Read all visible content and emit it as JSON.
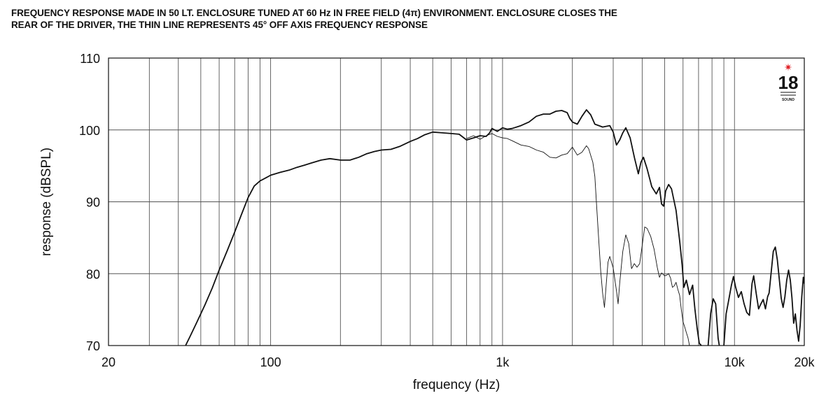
{
  "caption": {
    "line1": "FREQUENCY RESPONSE MADE IN 50 LT. ENCLOSURE TUNED AT 60 Hz IN FREE FIELD (4π) ENVIRONMENT. ENCLOSURE CLOSES THE",
    "line2": "REAR OF THE DRIVER, THE THIN LINE REPRESENTS 45° OFF AXIS FREQUENCY RESPONSE"
  },
  "logo": {
    "number": "18",
    "word": "SOUND",
    "accent": "#e0242a"
  },
  "chart_data": {
    "type": "line",
    "xlabel": "frequency (Hz)",
    "ylabel": "response (dBSPL)",
    "xscale": "log",
    "xlim": [
      20,
      20000
    ],
    "ylim": [
      70,
      110
    ],
    "grid": true,
    "xticks": [
      {
        "v": 20,
        "label": "20"
      },
      {
        "v": 100,
        "label": "100"
      },
      {
        "v": 1000,
        "label": "1k"
      },
      {
        "v": 10000,
        "label": "10k"
      },
      {
        "v": 20000,
        "label": "20k"
      }
    ],
    "yticks": [
      {
        "v": 70,
        "label": "70"
      },
      {
        "v": 80,
        "label": "80"
      },
      {
        "v": 90,
        "label": "90"
      },
      {
        "v": 100,
        "label": "100"
      },
      {
        "v": 110,
        "label": "110"
      }
    ],
    "series": [
      {
        "style": "thick",
        "points": [
          [
            43,
            70
          ],
          [
            45,
            71.3
          ],
          [
            48,
            73.2
          ],
          [
            52,
            75.6
          ],
          [
            56,
            78
          ],
          [
            60,
            80.5
          ],
          [
            65,
            83.2
          ],
          [
            70,
            85.8
          ],
          [
            75,
            88.3
          ],
          [
            80,
            90.6
          ],
          [
            85,
            92.2
          ],
          [
            90,
            92.9
          ],
          [
            95,
            93.3
          ],
          [
            100,
            93.7
          ],
          [
            110,
            94.1
          ],
          [
            120,
            94.4
          ],
          [
            130,
            94.8
          ],
          [
            140,
            95.1
          ],
          [
            150,
            95.4
          ],
          [
            165,
            95.8
          ],
          [
            180,
            96
          ],
          [
            200,
            95.8
          ],
          [
            220,
            95.8
          ],
          [
            240,
            96.2
          ],
          [
            260,
            96.7
          ],
          [
            280,
            97
          ],
          [
            300,
            97.2
          ],
          [
            330,
            97.3
          ],
          [
            360,
            97.7
          ],
          [
            400,
            98.4
          ],
          [
            430,
            98.8
          ],
          [
            460,
            99.3
          ],
          [
            500,
            99.7
          ],
          [
            550,
            99.6
          ],
          [
            600,
            99.5
          ],
          [
            650,
            99.4
          ],
          [
            700,
            98.6
          ],
          [
            750,
            98.9
          ],
          [
            800,
            99.2
          ],
          [
            850,
            99.1
          ],
          [
            880,
            99.6
          ],
          [
            900,
            100.2
          ],
          [
            950,
            99.8
          ],
          [
            1000,
            100.3
          ],
          [
            1050,
            100.1
          ],
          [
            1100,
            100.2
          ],
          [
            1200,
            100.6
          ],
          [
            1300,
            101.1
          ],
          [
            1400,
            101.9
          ],
          [
            1500,
            102.2
          ],
          [
            1600,
            102.2
          ],
          [
            1700,
            102.6
          ],
          [
            1800,
            102.7
          ],
          [
            1900,
            102.4
          ],
          [
            1950,
            101.6
          ],
          [
            2000,
            101.1
          ],
          [
            2100,
            100.8
          ],
          [
            2200,
            101.9
          ],
          [
            2300,
            102.8
          ],
          [
            2400,
            102.1
          ],
          [
            2500,
            100.8
          ],
          [
            2700,
            100.4
          ],
          [
            2900,
            100.6
          ],
          [
            3000,
            99.7
          ],
          [
            3100,
            97.9
          ],
          [
            3200,
            98.6
          ],
          [
            3300,
            99.6
          ],
          [
            3400,
            100.3
          ],
          [
            3550,
            98.9
          ],
          [
            3700,
            96.2
          ],
          [
            3850,
            93.9
          ],
          [
            3950,
            95.5
          ],
          [
            4050,
            96.2
          ],
          [
            4200,
            94.6
          ],
          [
            4400,
            92.1
          ],
          [
            4600,
            91.1
          ],
          [
            4750,
            92
          ],
          [
            4850,
            89.7
          ],
          [
            4950,
            89.4
          ],
          [
            5050,
            91.5
          ],
          [
            5200,
            92.4
          ],
          [
            5350,
            91.8
          ],
          [
            5600,
            88.8
          ],
          [
            5800,
            84.6
          ],
          [
            5950,
            81.2
          ],
          [
            6050,
            78.1
          ],
          [
            6200,
            79.1
          ],
          [
            6400,
            77.1
          ],
          [
            6600,
            78.4
          ],
          [
            6750,
            75.1
          ],
          [
            6900,
            72.4
          ],
          [
            7050,
            70.3
          ],
          [
            7200,
            70
          ]
        ]
      },
      {
        "style": "thick",
        "points": [
          [
            7700,
            70
          ],
          [
            7900,
            74.5
          ],
          [
            8100,
            76.5
          ],
          [
            8300,
            75.8
          ],
          [
            8500,
            71
          ],
          [
            8600,
            70
          ]
        ]
      },
      {
        "style": "thick",
        "points": [
          [
            9000,
            70
          ],
          [
            9200,
            74.4
          ],
          [
            9400,
            76
          ],
          [
            9700,
            78.4
          ],
          [
            9900,
            79.6
          ],
          [
            10100,
            78.2
          ],
          [
            10400,
            76.7
          ],
          [
            10700,
            77.5
          ],
          [
            11000,
            75.8
          ],
          [
            11300,
            74.6
          ],
          [
            11600,
            74.2
          ],
          [
            11900,
            78.6
          ],
          [
            12100,
            79.7
          ],
          [
            12400,
            77.3
          ],
          [
            12700,
            75.1
          ],
          [
            13000,
            75.8
          ],
          [
            13300,
            76.4
          ],
          [
            13600,
            75.1
          ],
          [
            13900,
            76.8
          ],
          [
            14100,
            77.3
          ],
          [
            14400,
            80.2
          ],
          [
            14700,
            83.1
          ],
          [
            15000,
            83.7
          ],
          [
            15300,
            81.9
          ],
          [
            15600,
            79.3
          ],
          [
            15900,
            76.6
          ],
          [
            16200,
            75.3
          ],
          [
            16500,
            76.8
          ],
          [
            16800,
            79.1
          ],
          [
            17100,
            80.5
          ],
          [
            17400,
            79.1
          ],
          [
            17700,
            76.6
          ],
          [
            18000,
            73.1
          ],
          [
            18300,
            74.4
          ],
          [
            18600,
            72.1
          ],
          [
            18900,
            70.6
          ],
          [
            19200,
            72.8
          ],
          [
            19500,
            76.8
          ],
          [
            19800,
            79.5
          ],
          [
            20000,
            78.6
          ]
        ]
      },
      {
        "style": "thin",
        "points": [
          [
            700,
            98.8
          ],
          [
            750,
            99.2
          ],
          [
            800,
            98.7
          ],
          [
            850,
            99.2
          ],
          [
            900,
            99.5
          ],
          [
            950,
            99.1
          ],
          [
            1000,
            98.9
          ],
          [
            1050,
            98.8
          ],
          [
            1100,
            98.5
          ],
          [
            1200,
            97.9
          ],
          [
            1300,
            97.7
          ],
          [
            1400,
            97.2
          ],
          [
            1500,
            96.9
          ],
          [
            1600,
            96.2
          ],
          [
            1700,
            96.1
          ],
          [
            1800,
            96.5
          ],
          [
            1900,
            96.7
          ],
          [
            2000,
            97.6
          ],
          [
            2100,
            96.5
          ],
          [
            2200,
            96.9
          ],
          [
            2300,
            97.8
          ],
          [
            2350,
            97.4
          ],
          [
            2450,
            95.5
          ],
          [
            2500,
            93.5
          ],
          [
            2550,
            89
          ],
          [
            2600,
            84.6
          ],
          [
            2650,
            80.3
          ],
          [
            2700,
            77.3
          ],
          [
            2750,
            75.3
          ],
          [
            2800,
            78.6
          ],
          [
            2850,
            81.6
          ],
          [
            2900,
            82.4
          ],
          [
            3000,
            80.8
          ],
          [
            3100,
            77.6
          ],
          [
            3150,
            75.8
          ],
          [
            3200,
            78.7
          ],
          [
            3300,
            83.1
          ],
          [
            3400,
            85.4
          ],
          [
            3500,
            84.2
          ],
          [
            3600,
            80.7
          ],
          [
            3700,
            81.4
          ],
          [
            3800,
            80.9
          ],
          [
            3900,
            81.4
          ],
          [
            4000,
            83.9
          ],
          [
            4100,
            86.5
          ],
          [
            4200,
            86.3
          ],
          [
            4350,
            85.2
          ],
          [
            4500,
            83.4
          ],
          [
            4650,
            80.8
          ],
          [
            4750,
            79.5
          ],
          [
            4850,
            80.1
          ],
          [
            5000,
            79.7
          ],
          [
            5100,
            79.8
          ],
          [
            5200,
            80
          ],
          [
            5300,
            79.4
          ],
          [
            5400,
            78.1
          ],
          [
            5500,
            78.3
          ],
          [
            5600,
            78.8
          ],
          [
            5700,
            77.8
          ],
          [
            5800,
            77
          ],
          [
            5900,
            75
          ],
          [
            6000,
            73.3
          ],
          [
            6100,
            72.6
          ],
          [
            6200,
            71.8
          ],
          [
            6300,
            71.1
          ],
          [
            6400,
            70
          ]
        ]
      }
    ]
  }
}
